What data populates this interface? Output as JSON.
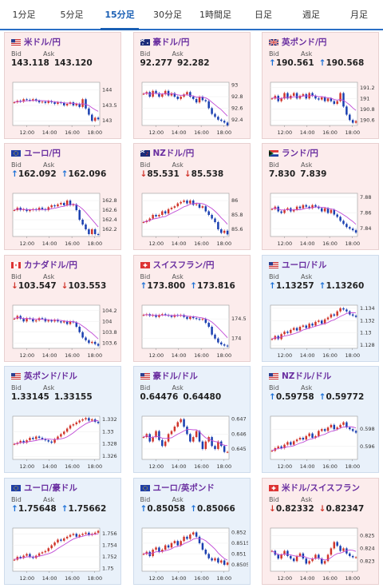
{
  "tabs": [
    "1分足",
    "5分足",
    "15分足",
    "30分足",
    "1時間足",
    "日足",
    "週足",
    "月足"
  ],
  "active_tab": 2,
  "labels": {
    "bid": "Bid",
    "ask": "Ask"
  },
  "colors": {
    "up": "#d0352b",
    "down": "#1a3fb0",
    "ma": "#c04bd6",
    "arrow_up": "#1a6fd6",
    "arrow_down": "#d0352b"
  },
  "time_ticks": [
    "12:00",
    "14:00",
    "16:00",
    "18:00"
  ],
  "cards": [
    {
      "title": "米ドル/円",
      "flag": "us",
      "bid": "143.118",
      "ask": "143.120",
      "dir": "none",
      "bg": "red",
      "yticks": [
        "144",
        "143.5",
        "143"
      ],
      "ylim": [
        142.85,
        144.25
      ],
      "series": [
        143.6,
        143.65,
        143.62,
        143.7,
        143.68,
        143.66,
        143.7,
        143.65,
        143.6,
        143.62,
        143.58,
        143.64,
        143.6,
        143.55,
        143.6,
        143.58,
        143.5,
        143.55,
        143.6,
        143.5,
        143.55,
        143.45,
        143.7,
        143.4,
        143.2,
        143.0,
        143.1,
        143.05
      ]
    },
    {
      "title": "豪ドル/円",
      "flag": "au",
      "bid": "92.277",
      "ask": "92.282",
      "dir": "none",
      "bg": "red",
      "yticks": [
        "93",
        "92.8",
        "92.6",
        "92.4"
      ],
      "ylim": [
        92.3,
        93.05
      ],
      "series": [
        92.85,
        92.88,
        92.8,
        92.9,
        92.86,
        92.8,
        92.84,
        92.9,
        92.82,
        92.86,
        92.8,
        92.76,
        92.8,
        92.84,
        92.88,
        92.8,
        92.76,
        92.7,
        92.8,
        92.74,
        92.72,
        92.6,
        92.5,
        92.45,
        92.4,
        92.38,
        92.35,
        92.3
      ]
    },
    {
      "title": "英ポンド/円",
      "flag": "uk",
      "bid": "190.561",
      "ask": "190.568",
      "dir": "up",
      "bg": "red",
      "yticks": [
        "191.2",
        "191",
        "190.8",
        "190.6"
      ],
      "ylim": [
        190.5,
        191.3
      ],
      "series": [
        191.0,
        191.05,
        190.95,
        191.0,
        191.1,
        191.0,
        191.05,
        191.1,
        191.0,
        191.05,
        191.08,
        191.0,
        191.1,
        191.05,
        191.0,
        190.98,
        191.02,
        190.95,
        191.0,
        190.95,
        190.9,
        190.95,
        191.1,
        190.85,
        190.7,
        190.6,
        190.55,
        190.58
      ]
    },
    {
      "title": "ユーロ/円",
      "flag": "eu",
      "bid": "162.092",
      "ask": "162.096",
      "dir": "up",
      "bg": "red",
      "yticks": [
        "162.8",
        "162.6",
        "162.4",
        "162.2"
      ],
      "ylim": [
        162.05,
        162.95
      ],
      "series": [
        162.6,
        162.65,
        162.6,
        162.62,
        162.58,
        162.6,
        162.62,
        162.6,
        162.65,
        162.62,
        162.6,
        162.66,
        162.7,
        162.68,
        162.72,
        162.75,
        162.7,
        162.8,
        162.7,
        162.72,
        162.6,
        162.4,
        162.3,
        162.2,
        162.1,
        162.2,
        162.1,
        162.09
      ]
    },
    {
      "title": "NZドル/円",
      "flag": "nz",
      "bid": "85.531",
      "ask": "85.538",
      "dir": "down",
      "bg": "red",
      "yticks": [
        "86",
        "85.8",
        "85.6"
      ],
      "ylim": [
        85.5,
        86.1
      ],
      "series": [
        85.7,
        85.72,
        85.75,
        85.8,
        85.78,
        85.8,
        85.85,
        85.82,
        85.88,
        85.9,
        85.92,
        85.96,
        85.98,
        86.0,
        85.96,
        86.0,
        85.94,
        85.95,
        85.9,
        85.92,
        85.85,
        85.8,
        85.75,
        85.7,
        85.6,
        85.55,
        85.58,
        85.53
      ]
    },
    {
      "title": "ランド/円",
      "flag": "za",
      "bid": "7.830",
      "ask": "7.839",
      "dir": "none",
      "bg": "red",
      "yticks": [
        "7.88",
        "7.86",
        "7.84"
      ],
      "ylim": [
        7.83,
        7.885
      ],
      "series": [
        7.865,
        7.868,
        7.862,
        7.86,
        7.864,
        7.866,
        7.862,
        7.864,
        7.868,
        7.866,
        7.87,
        7.868,
        7.866,
        7.87,
        7.868,
        7.866,
        7.862,
        7.866,
        7.86,
        7.864,
        7.858,
        7.855,
        7.85,
        7.846,
        7.842,
        7.84,
        7.838,
        7.835
      ]
    },
    {
      "title": "カナダドル/円",
      "flag": "ca",
      "bid": "103.547",
      "ask": "103.553",
      "dir": "down",
      "bg": "red",
      "yticks": [
        "104.2",
        "104",
        "103.8",
        "103.6"
      ],
      "ylim": [
        103.5,
        104.3
      ],
      "series": [
        104.05,
        104.1,
        104.05,
        104.0,
        104.06,
        104.05,
        104.0,
        104.02,
        104.06,
        104.05,
        104.0,
        104.02,
        104.0,
        104.03,
        104.0,
        103.98,
        104.0,
        103.95,
        104.0,
        103.98,
        103.9,
        103.8,
        103.7,
        103.65,
        103.6,
        103.62,
        103.58,
        103.55
      ]
    },
    {
      "title": "スイスフラン/円",
      "flag": "ch",
      "bid": "173.800",
      "ask": "173.816",
      "dir": "up",
      "bg": "red",
      "yticks": [
        "174.5",
        "174"
      ],
      "ylim": [
        173.75,
        174.85
      ],
      "series": [
        174.6,
        174.62,
        174.58,
        174.6,
        174.55,
        174.6,
        174.62,
        174.6,
        174.58,
        174.55,
        174.6,
        174.58,
        174.6,
        174.55,
        174.5,
        174.55,
        174.52,
        174.5,
        174.48,
        174.5,
        174.4,
        174.3,
        174.1,
        174.0,
        173.9,
        173.85,
        173.82,
        173.8
      ]
    },
    {
      "title": "ユーロ/ドル",
      "flag": "us",
      "bid": "1.13257",
      "ask": "1.13260",
      "dir": "up",
      "bg": "blue",
      "yticks": [
        "1.134",
        "1.132",
        "1.13",
        "1.128"
      ],
      "ylim": [
        1.1275,
        1.1345
      ],
      "series": [
        1.129,
        1.1295,
        1.129,
        1.1298,
        1.1302,
        1.13,
        1.1305,
        1.1308,
        1.1304,
        1.131,
        1.1312,
        1.1308,
        1.1315,
        1.1312,
        1.1318,
        1.132,
        1.1315,
        1.1322,
        1.1325,
        1.133,
        1.1328,
        1.1335,
        1.134,
        1.1338,
        1.1335,
        1.133,
        1.1328,
        1.1326
      ]
    },
    {
      "title": "英ポンド/ドル",
      "flag": "us",
      "bid": "1.33145",
      "ask": "1.33155",
      "dir": "none",
      "bg": "blue",
      "yticks": [
        "1.332",
        "1.33",
        "1.328",
        "1.326"
      ],
      "ylim": [
        1.3255,
        1.3325
      ],
      "series": [
        1.328,
        1.3282,
        1.3285,
        1.3282,
        1.3286,
        1.329,
        1.3288,
        1.3292,
        1.329,
        1.3288,
        1.3286,
        1.3284,
        1.3282,
        1.3288,
        1.3292,
        1.3296,
        1.33,
        1.3305,
        1.331,
        1.3312,
        1.3315,
        1.3318,
        1.332,
        1.3322,
        1.3318,
        1.332,
        1.3316,
        1.3314
      ]
    },
    {
      "title": "豪ドル/ドル",
      "flag": "us",
      "bid": "0.64476",
      "ask": "0.64480",
      "dir": "none",
      "bg": "blue",
      "yticks": [
        "0.647",
        "0.646",
        "0.645"
      ],
      "ylim": [
        0.6443,
        0.6472
      ],
      "series": [
        0.6458,
        0.646,
        0.6455,
        0.6458,
        0.6462,
        0.6456,
        0.6452,
        0.6455,
        0.646,
        0.6462,
        0.6465,
        0.6468,
        0.647,
        0.6465,
        0.646,
        0.6455,
        0.6458,
        0.6462,
        0.6455,
        0.645,
        0.6455,
        0.6458,
        0.6452,
        0.645,
        0.6455,
        0.6452,
        0.6448,
        0.6448
      ]
    },
    {
      "title": "NZドル/ドル",
      "flag": "us",
      "bid": "0.59758",
      "ask": "0.59772",
      "dir": "up",
      "bg": "blue",
      "yticks": [
        "0.598",
        "0.596"
      ],
      "ylim": [
        0.5945,
        0.5995
      ],
      "series": [
        0.5955,
        0.5958,
        0.596,
        0.5958,
        0.5962,
        0.5965,
        0.5962,
        0.5966,
        0.5968,
        0.597,
        0.5968,
        0.5972,
        0.5975,
        0.597,
        0.5972,
        0.5978,
        0.598,
        0.5978,
        0.5982,
        0.5985,
        0.598,
        0.5982,
        0.5985,
        0.5988,
        0.5982,
        0.598,
        0.5978,
        0.5976
      ]
    },
    {
      "title": "ユーロ/豪ドル",
      "flag": "eu",
      "bid": "1.75648",
      "ask": "1.75662",
      "dir": "up",
      "bg": "blue",
      "yticks": [
        "1.756",
        "1.754",
        "1.752",
        "1.75"
      ],
      "ylim": [
        1.7495,
        1.757
      ],
      "series": [
        1.7515,
        1.752,
        1.7518,
        1.7522,
        1.7525,
        1.752,
        1.7518,
        1.7522,
        1.7526,
        1.7528,
        1.753,
        1.7535,
        1.754,
        1.7545,
        1.755,
        1.7548,
        1.7552,
        1.7555,
        1.7558,
        1.756,
        1.7555,
        1.7558,
        1.756,
        1.7562,
        1.7558,
        1.756,
        1.7562,
        1.7565
      ]
    },
    {
      "title": "ユーロ/英ポンド",
      "flag": "eu",
      "bid": "0.85058",
      "ask": "0.85066",
      "dir": "up",
      "bg": "blue",
      "yticks": [
        "0.852",
        "0.8515",
        "0.851",
        "0.8505"
      ],
      "ylim": [
        0.8502,
        0.8522
      ],
      "series": [
        0.851,
        0.8511,
        0.8509,
        0.8512,
        0.8513,
        0.8511,
        0.8512,
        0.8514,
        0.8513,
        0.8515,
        0.8516,
        0.8514,
        0.8516,
        0.8518,
        0.8517,
        0.8519,
        0.852,
        0.8518,
        0.8515,
        0.8512,
        0.851,
        0.8508,
        0.8507,
        0.8508,
        0.8506,
        0.8507,
        0.8505,
        0.8506
      ]
    },
    {
      "title": "米ドル/スイスフラン",
      "flag": "ch",
      "bid": "0.82332",
      "ask": "0.82347",
      "dir": "down",
      "bg": "red",
      "yticks": [
        "0.825",
        "0.824",
        "0.823"
      ],
      "ylim": [
        0.8222,
        0.8256
      ],
      "series": [
        0.8238,
        0.8235,
        0.8232,
        0.8235,
        0.8238,
        0.8234,
        0.8232,
        0.823,
        0.8234,
        0.8236,
        0.8232,
        0.8228,
        0.823,
        0.8232,
        0.8235,
        0.8232,
        0.8228,
        0.823,
        0.8235,
        0.824,
        0.8245,
        0.8242,
        0.8238,
        0.824,
        0.8236,
        0.8234,
        0.8233,
        0.8233
      ]
    }
  ]
}
